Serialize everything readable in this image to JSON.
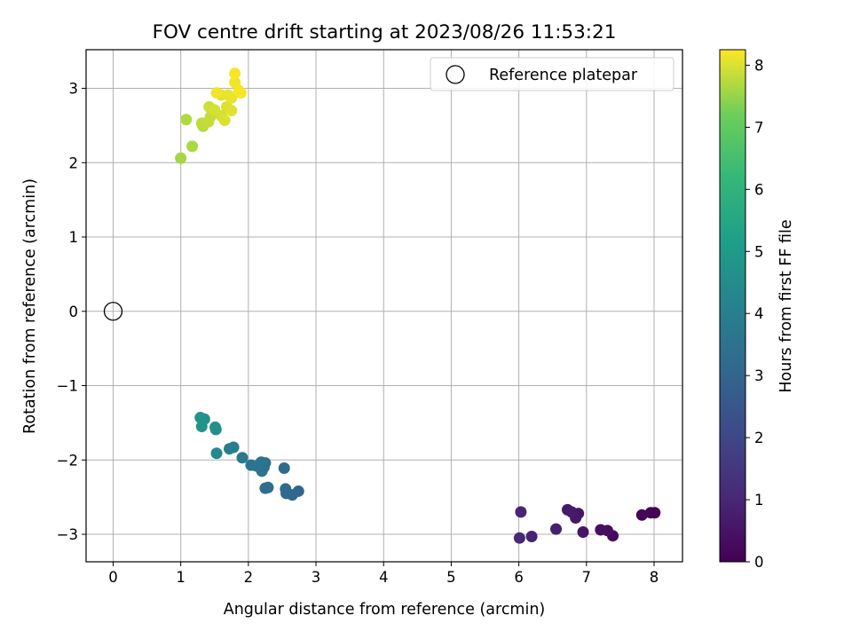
{
  "chart_data": {
    "type": "scatter",
    "title": "FOV centre drift starting at 2023/08/26 11:53:21",
    "xlabel": "Angular distance from reference (arcmin)",
    "ylabel": "Rotation from reference (arcmin)",
    "xlim": [
      -0.4,
      8.42
    ],
    "ylim": [
      -3.37,
      3.52
    ],
    "xticks": [
      0,
      1,
      2,
      3,
      4,
      5,
      6,
      7,
      8
    ],
    "yticks": [
      -3,
      -2,
      -1,
      0,
      1,
      2,
      3
    ],
    "grid": true,
    "legend": {
      "position": "top-right",
      "entries": [
        "Reference platepar"
      ]
    },
    "reference_point": {
      "x": 0,
      "y": 0,
      "label": "Reference platepar"
    },
    "colorbar": {
      "label": "Hours from first FF file",
      "range": [
        0,
        8.25
      ],
      "ticks": [
        0,
        1,
        2,
        3,
        4,
        5,
        6,
        7,
        8
      ],
      "colormap": "viridis"
    },
    "points": [
      {
        "x": 8.01,
        "y": -2.71,
        "t": 0.05
      },
      {
        "x": 7.95,
        "y": -2.71,
        "t": 0.1
      },
      {
        "x": 7.82,
        "y": -2.74,
        "t": 0.15
      },
      {
        "x": 7.39,
        "y": -3.02,
        "t": 0.3
      },
      {
        "x": 7.31,
        "y": -2.95,
        "t": 0.35
      },
      {
        "x": 7.21,
        "y": -2.94,
        "t": 0.4
      },
      {
        "x": 6.95,
        "y": -2.97,
        "t": 0.5
      },
      {
        "x": 6.88,
        "y": -2.72,
        "t": 0.55
      },
      {
        "x": 6.84,
        "y": -2.78,
        "t": 0.6
      },
      {
        "x": 6.78,
        "y": -2.7,
        "t": 0.65
      },
      {
        "x": 6.72,
        "y": -2.67,
        "t": 0.7
      },
      {
        "x": 6.55,
        "y": -2.93,
        "t": 0.8
      },
      {
        "x": 6.19,
        "y": -3.03,
        "t": 0.9
      },
      {
        "x": 6.03,
        "y": -2.7,
        "t": 0.95
      },
      {
        "x": 6.01,
        "y": -3.05,
        "t": 1.0
      },
      {
        "x": 2.74,
        "y": -2.42,
        "t": 3.0
      },
      {
        "x": 2.65,
        "y": -2.47,
        "t": 3.05
      },
      {
        "x": 2.56,
        "y": -2.45,
        "t": 3.1
      },
      {
        "x": 2.55,
        "y": -2.39,
        "t": 3.15
      },
      {
        "x": 2.53,
        "y": -2.11,
        "t": 3.2
      },
      {
        "x": 2.29,
        "y": -2.37,
        "t": 3.3
      },
      {
        "x": 2.25,
        "y": -2.38,
        "t": 3.35
      },
      {
        "x": 2.25,
        "y": -2.04,
        "t": 3.4
      },
      {
        "x": 2.23,
        "y": -2.1,
        "t": 3.45
      },
      {
        "x": 2.2,
        "y": -2.15,
        "t": 3.5
      },
      {
        "x": 2.19,
        "y": -2.03,
        "t": 3.55
      },
      {
        "x": 2.12,
        "y": -2.08,
        "t": 3.6
      },
      {
        "x": 2.04,
        "y": -2.07,
        "t": 3.65
      },
      {
        "x": 1.91,
        "y": -1.97,
        "t": 3.75
      },
      {
        "x": 1.78,
        "y": -1.83,
        "t": 3.9
      },
      {
        "x": 1.72,
        "y": -1.85,
        "t": 4.0
      },
      {
        "x": 1.53,
        "y": -1.91,
        "t": 4.4
      },
      {
        "x": 1.52,
        "y": -1.59,
        "t": 4.5
      },
      {
        "x": 1.51,
        "y": -1.56,
        "t": 4.55
      },
      {
        "x": 1.35,
        "y": -1.45,
        "t": 4.65
      },
      {
        "x": 1.31,
        "y": -1.55,
        "t": 4.75
      },
      {
        "x": 1.29,
        "y": -1.43,
        "t": 4.8
      },
      {
        "x": 1.0,
        "y": 2.06,
        "t": 7.6
      },
      {
        "x": 1.17,
        "y": 2.22,
        "t": 7.65
      },
      {
        "x": 1.08,
        "y": 2.58,
        "t": 7.7
      },
      {
        "x": 1.33,
        "y": 2.49,
        "t": 7.75
      },
      {
        "x": 1.31,
        "y": 2.53,
        "t": 7.8
      },
      {
        "x": 1.41,
        "y": 2.55,
        "t": 7.85
      },
      {
        "x": 1.44,
        "y": 2.62,
        "t": 7.85
      },
      {
        "x": 1.42,
        "y": 2.75,
        "t": 7.9
      },
      {
        "x": 1.5,
        "y": 2.71,
        "t": 7.95
      },
      {
        "x": 1.6,
        "y": 2.63,
        "t": 7.95
      },
      {
        "x": 1.65,
        "y": 2.57,
        "t": 8.0
      },
      {
        "x": 1.68,
        "y": 2.75,
        "t": 8.0
      },
      {
        "x": 1.75,
        "y": 2.7,
        "t": 8.05
      },
      {
        "x": 1.6,
        "y": 2.91,
        "t": 8.05
      },
      {
        "x": 1.7,
        "y": 2.91,
        "t": 8.1
      },
      {
        "x": 1.75,
        "y": 2.87,
        "t": 8.1
      },
      {
        "x": 1.53,
        "y": 2.94,
        "t": 8.15
      },
      {
        "x": 1.8,
        "y": 3.08,
        "t": 8.15
      },
      {
        "x": 1.86,
        "y": 2.97,
        "t": 8.2
      },
      {
        "x": 1.89,
        "y": 2.94,
        "t": 8.2
      },
      {
        "x": 1.8,
        "y": 3.2,
        "t": 8.2
      }
    ]
  }
}
